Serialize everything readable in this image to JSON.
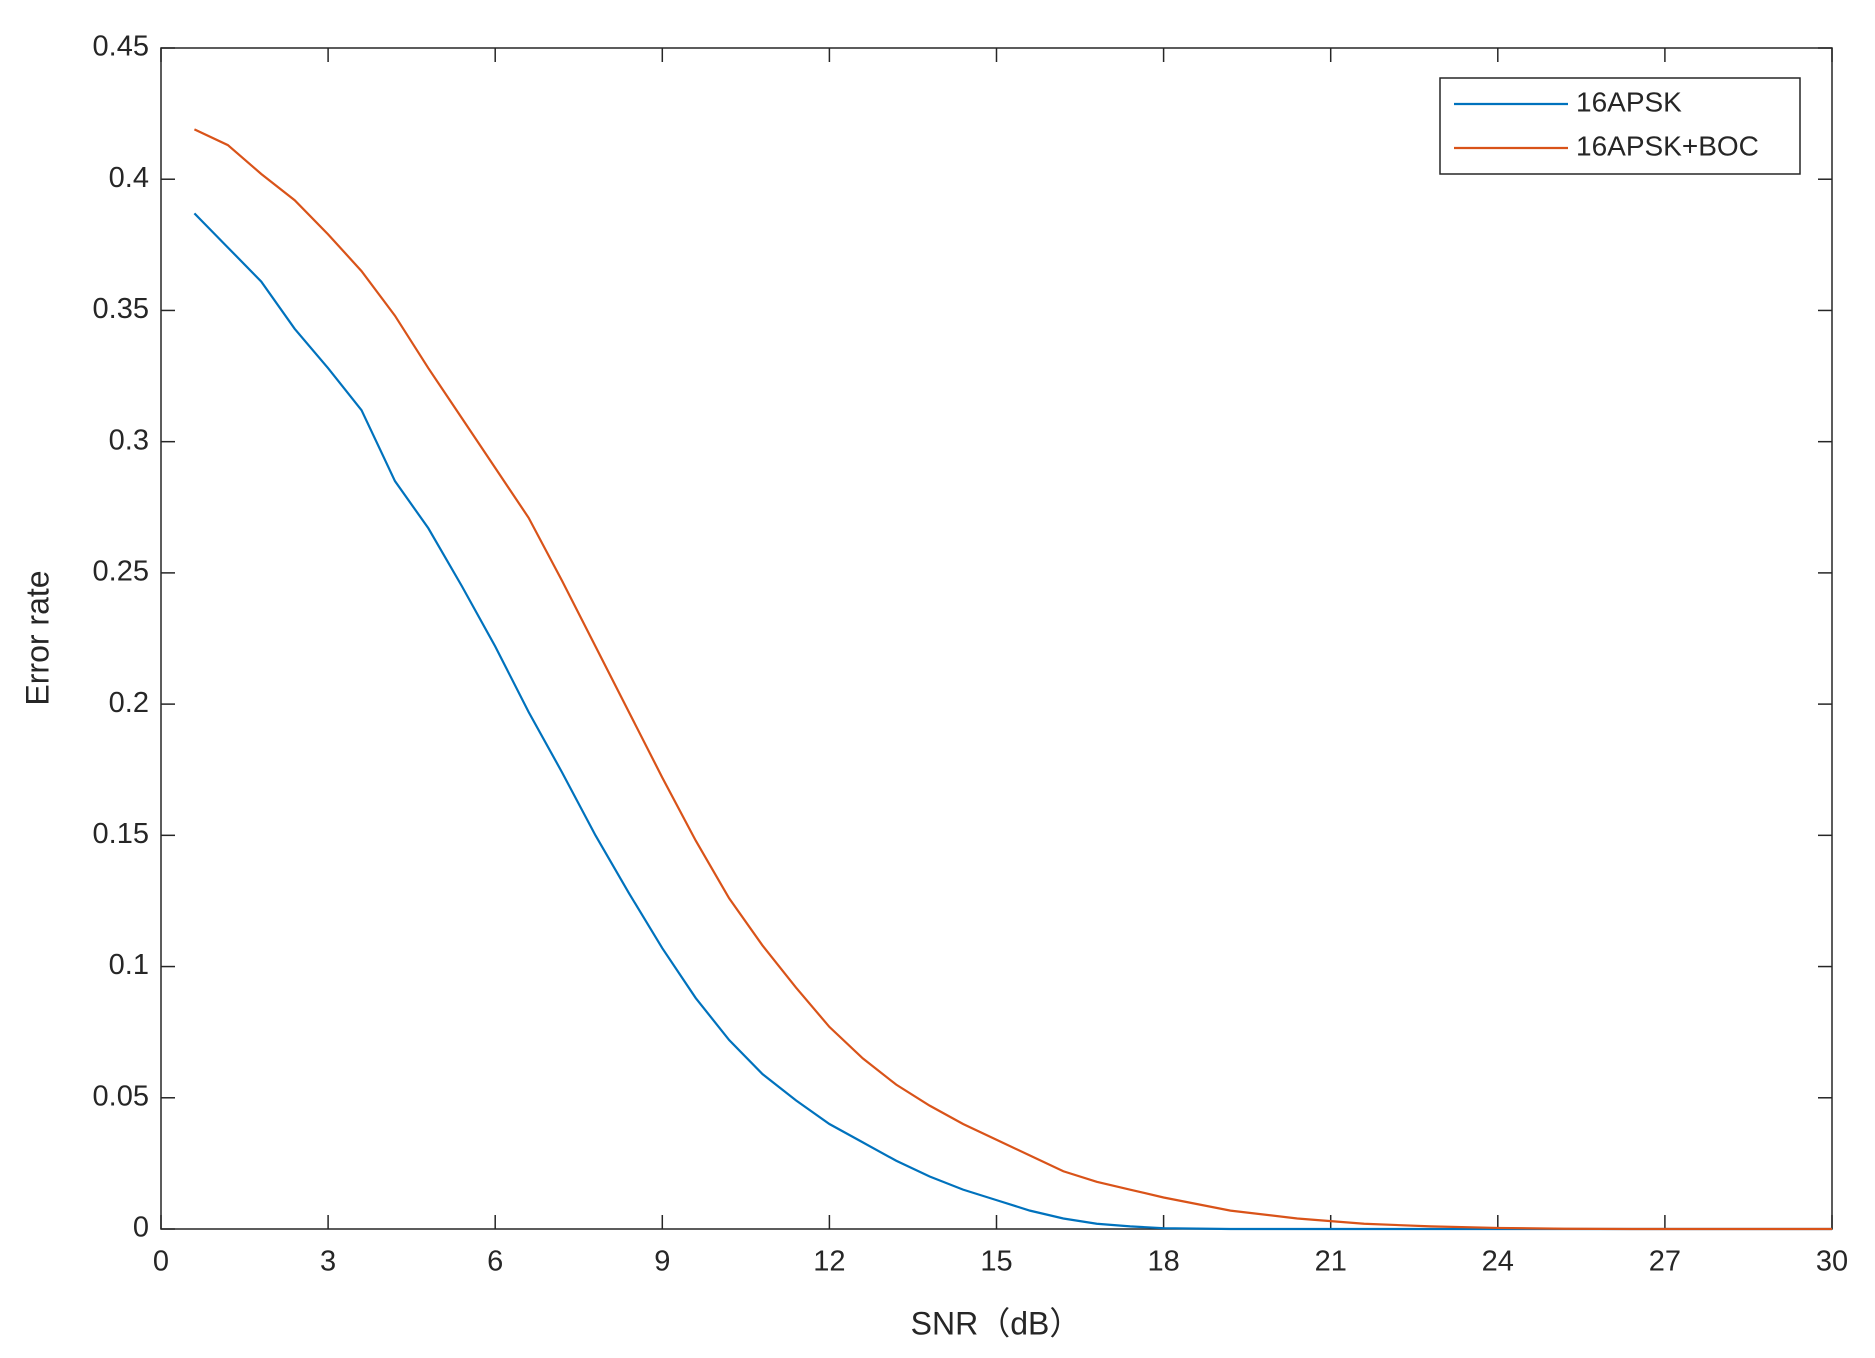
{
  "chart_data": {
    "type": "line",
    "xlabel": "SNR（dB）",
    "ylabel": "Error rate",
    "x": [
      0.6,
      1.2,
      1.8,
      2.4,
      3,
      3.6,
      4.2,
      4.8,
      5.4,
      6,
      6.6,
      7.2,
      7.8,
      8.4,
      9,
      9.6,
      10.2,
      10.8,
      11.4,
      12,
      12.6,
      13.2,
      13.8,
      14.4,
      15,
      15.6,
      16.2,
      16.8,
      17.4,
      18,
      19.2,
      20.4,
      21.6,
      22.8,
      24,
      25.2,
      26.4,
      27.6,
      28.8,
      30
    ],
    "series": [
      {
        "name": "16APSK",
        "color": "#0072bd",
        "values": [
          0.387,
          0.374,
          0.361,
          0.343,
          0.328,
          0.312,
          0.285,
          0.267,
          0.245,
          0.222,
          0.197,
          0.174,
          0.15,
          0.128,
          0.107,
          0.088,
          0.072,
          0.059,
          0.049,
          0.04,
          0.033,
          0.026,
          0.02,
          0.015,
          0.011,
          0.007,
          0.004,
          0.002,
          0.001,
          0.0003,
          0,
          0,
          0,
          0,
          0,
          0,
          0,
          0,
          0,
          0
        ]
      },
      {
        "name": "16APSK+BOC",
        "color": "#d95319",
        "values": [
          0.419,
          0.413,
          0.402,
          0.392,
          0.379,
          0.365,
          0.348,
          0.328,
          0.309,
          0.29,
          0.271,
          0.247,
          0.222,
          0.197,
          0.172,
          0.148,
          0.126,
          0.108,
          0.092,
          0.077,
          0.065,
          0.055,
          0.047,
          0.04,
          0.034,
          0.028,
          0.022,
          0.018,
          0.015,
          0.012,
          0.007,
          0.004,
          0.002,
          0.001,
          0.0004,
          0.0001,
          0,
          0,
          0,
          0
        ]
      }
    ],
    "xlim": [
      0,
      30
    ],
    "xticks": [
      0,
      3,
      6,
      9,
      12,
      15,
      18,
      21,
      24,
      27,
      30
    ],
    "ylim": [
      0,
      0.45
    ],
    "yticks": [
      0,
      0.05,
      0.1,
      0.15,
      0.2,
      0.25,
      0.3,
      0.35,
      0.4,
      0.45
    ],
    "grid": false,
    "legend": "upper right"
  }
}
